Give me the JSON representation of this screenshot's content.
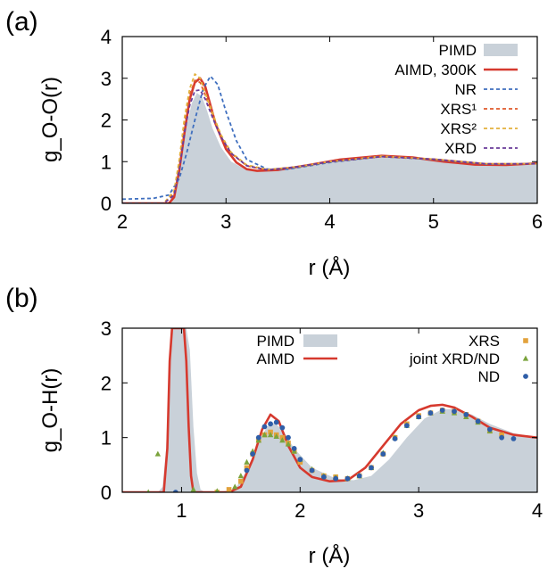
{
  "chart_data": [
    {
      "type": "line",
      "panel_label": "(a)",
      "xlabel": "r (Å)",
      "ylabel": "g_O-O(r)",
      "xlim": [
        2,
        6
      ],
      "ylim": [
        0,
        4
      ],
      "xticks": [
        "2",
        "3",
        "4",
        "5",
        "6"
      ],
      "yticks": [
        "0",
        "1",
        "2",
        "3",
        "4"
      ],
      "legend_position": "top-right",
      "series": [
        {
          "name": "PIMD",
          "style": "filled-area",
          "color": "#c9d1d9",
          "x": [
            2.0,
            2.4,
            2.47,
            2.52,
            2.57,
            2.62,
            2.67,
            2.72,
            2.77,
            2.82,
            2.87,
            2.95,
            3.05,
            3.2,
            3.35,
            3.5,
            3.8,
            4.1,
            4.4,
            4.6,
            4.9,
            5.2,
            5.5,
            5.8,
            6.0
          ],
          "y": [
            0.0,
            0.0,
            0.05,
            0.35,
            1.05,
            1.85,
            2.4,
            2.65,
            2.55,
            2.2,
            1.8,
            1.35,
            1.0,
            0.8,
            0.76,
            0.8,
            0.92,
            1.05,
            1.12,
            1.13,
            1.08,
            1.0,
            0.93,
            0.93,
            0.95
          ]
        },
        {
          "name": "AIMD, 300K",
          "style": "solid",
          "color": "#d6392e",
          "x": [
            2.0,
            2.45,
            2.5,
            2.55,
            2.6,
            2.65,
            2.7,
            2.75,
            2.8,
            2.85,
            2.9,
            3.0,
            3.1,
            3.2,
            3.3,
            3.5,
            3.8,
            4.1,
            4.5,
            4.8,
            5.1,
            5.4,
            5.7,
            6.0
          ],
          "y": [
            0.0,
            0.0,
            0.15,
            0.8,
            1.7,
            2.5,
            2.9,
            3.0,
            2.8,
            2.35,
            1.9,
            1.3,
            0.98,
            0.82,
            0.78,
            0.8,
            0.92,
            1.05,
            1.14,
            1.1,
            1.0,
            0.93,
            0.92,
            0.96
          ]
        },
        {
          "name": "NR",
          "style": "dashed",
          "color": "#3f6fbf",
          "x": [
            2.0,
            2.3,
            2.45,
            2.55,
            2.62,
            2.7,
            2.78,
            2.85,
            2.92,
            3.0,
            3.1,
            3.2,
            3.4,
            3.6,
            4.0,
            4.5,
            5.0,
            5.5,
            6.0
          ],
          "y": [
            0.1,
            0.12,
            0.2,
            0.6,
            1.2,
            2.0,
            2.75,
            3.05,
            2.85,
            2.2,
            1.5,
            1.05,
            0.82,
            0.82,
            0.98,
            1.12,
            1.05,
            0.94,
            0.95
          ]
        },
        {
          "name": "XRS¹",
          "style": "dashed",
          "color": "#e05a2b",
          "x": [
            2.0,
            2.4,
            2.5,
            2.55,
            2.6,
            2.65,
            2.7,
            2.75,
            2.8,
            2.88,
            2.95,
            3.05,
            3.2,
            3.4,
            3.7,
            4.0,
            4.5,
            5.0,
            5.5,
            6.0
          ],
          "y": [
            0.0,
            0.0,
            0.25,
            0.95,
            1.9,
            2.6,
            2.95,
            2.9,
            2.6,
            2.05,
            1.6,
            1.2,
            0.9,
            0.8,
            0.88,
            1.0,
            1.12,
            1.06,
            0.95,
            0.95
          ]
        },
        {
          "name": "XRS²",
          "style": "dashed",
          "color": "#e2b13c",
          "x": [
            2.0,
            2.4,
            2.5,
            2.55,
            2.6,
            2.65,
            2.7,
            2.75,
            2.8,
            2.88,
            2.95,
            3.05,
            3.2,
            3.4,
            3.7,
            4.0,
            4.5,
            5.0,
            5.5,
            6.0
          ],
          "y": [
            0.0,
            0.0,
            0.3,
            1.05,
            2.05,
            2.75,
            3.1,
            3.0,
            2.65,
            2.1,
            1.65,
            1.22,
            0.92,
            0.81,
            0.88,
            1.0,
            1.13,
            1.06,
            0.95,
            0.95
          ]
        },
        {
          "name": "XRD",
          "style": "dashed",
          "color": "#6a3d9a",
          "x": [
            2.0,
            2.4,
            2.5,
            2.55,
            2.6,
            2.65,
            2.7,
            2.75,
            2.8,
            2.88,
            2.95,
            3.05,
            3.2,
            3.4,
            3.7,
            4.0,
            4.5,
            5.0,
            5.5,
            6.0
          ],
          "y": [
            0.0,
            0.0,
            0.2,
            0.8,
            1.7,
            2.35,
            2.7,
            2.72,
            2.5,
            2.0,
            1.6,
            1.2,
            0.9,
            0.8,
            0.88,
            1.0,
            1.12,
            1.06,
            0.95,
            0.95
          ]
        }
      ]
    },
    {
      "type": "line",
      "panel_label": "(b)",
      "xlabel": "r (Å)",
      "ylabel": "g_O-H(r)",
      "xlim": [
        0.5,
        4
      ],
      "ylim": [
        0,
        3
      ],
      "xticks": [
        "1",
        "2",
        "3",
        "4"
      ],
      "yticks": [
        "0",
        "1",
        "2",
        "3"
      ],
      "legend_position": "top",
      "series": [
        {
          "name": "PIMD",
          "style": "filled-area",
          "color": "#c9d1d9",
          "x": [
            0.5,
            0.8,
            0.84,
            0.87,
            0.9,
            0.93,
            0.96,
            1.0,
            1.04,
            1.07,
            1.1,
            1.13,
            1.16,
            1.2,
            1.3,
            1.45,
            1.55,
            1.65,
            1.72,
            1.78,
            1.85,
            1.95,
            2.1,
            2.3,
            2.45,
            2.6,
            2.75,
            2.9,
            3.05,
            3.2,
            3.3,
            3.45,
            3.6,
            3.8,
            4.0
          ],
          "y": [
            0.0,
            0.0,
            0.1,
            0.8,
            2.5,
            3.4,
            3.4,
            3.4,
            3.4,
            2.6,
            1.2,
            0.35,
            0.05,
            0.0,
            0.0,
            0.05,
            0.4,
            0.9,
            1.2,
            1.27,
            1.15,
            0.8,
            0.45,
            0.25,
            0.22,
            0.3,
            0.6,
            1.0,
            1.35,
            1.52,
            1.52,
            1.42,
            1.25,
            1.08,
            1.0
          ]
        },
        {
          "name": "AIMD",
          "style": "solid",
          "color": "#d6392e",
          "x": [
            0.5,
            0.85,
            0.88,
            0.9,
            0.92,
            0.94,
            1.0,
            1.02,
            1.04,
            1.06,
            1.08,
            1.1,
            1.2,
            1.4,
            1.5,
            1.6,
            1.68,
            1.75,
            1.82,
            1.9,
            2.0,
            2.1,
            2.25,
            2.4,
            2.55,
            2.7,
            2.85,
            3.0,
            3.1,
            3.2,
            3.3,
            3.45,
            3.6,
            3.8,
            4.0
          ],
          "y": [
            0.0,
            0.0,
            0.8,
            2.4,
            3.2,
            3.4,
            3.4,
            3.2,
            2.4,
            1.2,
            0.3,
            0.0,
            0.0,
            0.0,
            0.1,
            0.6,
            1.15,
            1.42,
            1.3,
            0.85,
            0.45,
            0.28,
            0.2,
            0.22,
            0.45,
            0.85,
            1.25,
            1.5,
            1.58,
            1.6,
            1.55,
            1.38,
            1.18,
            1.05,
            1.0
          ]
        },
        {
          "name": "XRS",
          "style": "markers",
          "marker": "square",
          "color": "#e2a23c",
          "x": [
            1.3,
            1.4,
            1.5,
            1.55,
            1.6,
            1.65,
            1.7,
            1.75,
            1.8,
            1.85,
            1.9,
            1.95,
            2.0,
            2.1,
            2.2,
            2.3,
            2.4,
            2.5,
            2.6,
            2.7,
            2.8,
            2.9,
            3.0,
            3.1,
            3.2,
            3.3,
            3.4,
            3.5,
            3.6,
            3.7
          ],
          "y": [
            0.0,
            0.05,
            0.2,
            0.45,
            0.7,
            0.95,
            1.05,
            1.1,
            1.05,
            1.0,
            0.9,
            0.75,
            0.55,
            0.4,
            0.3,
            0.28,
            0.25,
            0.3,
            0.45,
            0.7,
            1.0,
            1.25,
            1.4,
            1.45,
            1.5,
            1.48,
            1.42,
            1.3,
            1.12,
            1.05
          ]
        },
        {
          "name": "joint XRD/ND",
          "style": "markers",
          "marker": "triangle",
          "color": "#7aa33c",
          "x": [
            0.72,
            0.8,
            1.1,
            1.3,
            1.45,
            1.5,
            1.55,
            1.6,
            1.65,
            1.7,
            1.75,
            1.8,
            1.85,
            1.9,
            1.95,
            2.0,
            2.1,
            2.2,
            2.3,
            2.4,
            2.5,
            2.6,
            2.7,
            2.8,
            2.9,
            3.0,
            3.1,
            3.2,
            3.3,
            3.4,
            3.5,
            3.6
          ],
          "y": [
            0.0,
            0.7,
            0.05,
            0.02,
            0.1,
            0.3,
            0.55,
            0.75,
            0.95,
            1.05,
            1.05,
            1.02,
            0.95,
            0.88,
            0.75,
            0.6,
            0.42,
            0.3,
            0.27,
            0.25,
            0.3,
            0.45,
            0.72,
            1.0,
            1.22,
            1.38,
            1.45,
            1.48,
            1.45,
            1.38,
            1.28,
            1.12
          ]
        },
        {
          "name": "ND",
          "style": "markers",
          "marker": "circle",
          "color": "#2f5ea8",
          "x": [
            0.95,
            1.55,
            1.6,
            1.65,
            1.7,
            1.75,
            1.8,
            1.85,
            1.9,
            1.95,
            2.0,
            2.1,
            2.2,
            2.3,
            2.4,
            2.5,
            2.6,
            2.7,
            2.8,
            2.9,
            3.0,
            3.1,
            3.2,
            3.3,
            3.4,
            3.5,
            3.6,
            3.7,
            3.8
          ],
          "y": [
            0.0,
            0.4,
            0.7,
            1.0,
            1.2,
            1.25,
            1.28,
            1.18,
            1.0,
            0.8,
            0.6,
            0.4,
            0.28,
            0.25,
            0.25,
            0.3,
            0.45,
            0.7,
            0.98,
            1.22,
            1.38,
            1.45,
            1.5,
            1.48,
            1.42,
            1.3,
            1.15,
            1.0,
            0.98
          ]
        }
      ]
    }
  ]
}
